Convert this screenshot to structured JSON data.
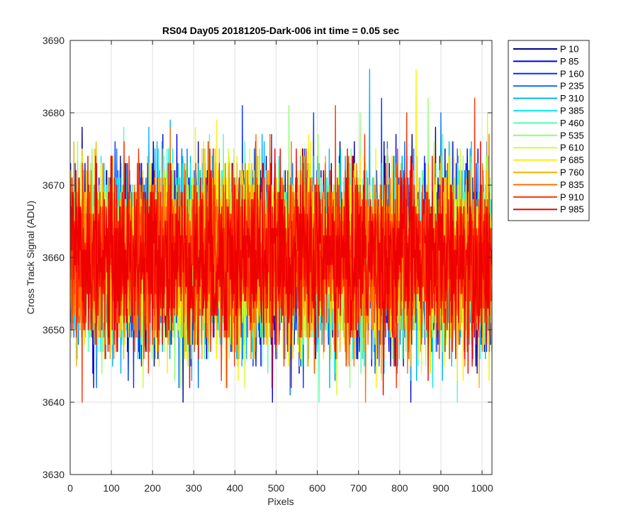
{
  "chart_data": {
    "type": "line",
    "title": "RS04 Day05 20181205-Dark-006 int time = 0.05 sec",
    "xlabel": "Pixels",
    "ylabel": "Cross Track Signal (ADU)",
    "xlim": [
      0,
      1024
    ],
    "ylim": [
      3630,
      3690
    ],
    "xticks": [
      0,
      100,
      200,
      300,
      400,
      500,
      600,
      700,
      800,
      900,
      1000
    ],
    "yticks": [
      3630,
      3640,
      3650,
      3660,
      3670,
      3680,
      3690
    ],
    "grid": true,
    "legend_position": "outside-top-right",
    "noise_model": {
      "mean": 3660,
      "std": 6,
      "min": 3631,
      "max": 3688,
      "samples_per_series": 1024
    },
    "series": [
      {
        "name": "P 10",
        "color": "#00008f"
      },
      {
        "name": "P 85",
        "color": "#0000df"
      },
      {
        "name": "P 160",
        "color": "#0030ff"
      },
      {
        "name": "P 235",
        "color": "#0070ff"
      },
      {
        "name": "P 310",
        "color": "#00b0ff"
      },
      {
        "name": "P 385",
        "color": "#10efef"
      },
      {
        "name": "P 460",
        "color": "#50ffaf"
      },
      {
        "name": "P 535",
        "color": "#8fff70"
      },
      {
        "name": "P 610",
        "color": "#cfff30"
      },
      {
        "name": "P 685",
        "color": "#ffef00"
      },
      {
        "name": "P 760",
        "color": "#ffb000"
      },
      {
        "name": "P 835",
        "color": "#ff7000"
      },
      {
        "name": "P 910",
        "color": "#ff3000"
      },
      {
        "name": "P 985",
        "color": "#ef0000"
      }
    ]
  }
}
